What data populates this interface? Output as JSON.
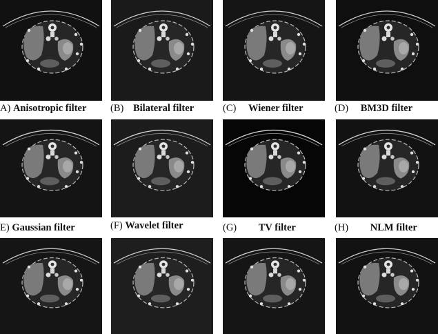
{
  "figure": {
    "panels": [
      {
        "letter": "A)",
        "name": "Anisotropic filter",
        "tone": "#111111"
      },
      {
        "letter": "(B)",
        "name": "Bilateral filter",
        "tone": "#1a1a1a"
      },
      {
        "letter": "(C)",
        "name": "Wiener filter",
        "tone": "#151515"
      },
      {
        "letter": "(D)",
        "name": "BM3D filter",
        "tone": "#0f0f0f"
      },
      {
        "letter": "E)",
        "name": "Gaussian filter",
        "tone": "#141414"
      },
      {
        "letter": "(F)",
        "name": "Wavelet filter",
        "tone": "#1c1c1c"
      },
      {
        "letter": "(G)",
        "name": "TV filter",
        "tone": "#060606"
      },
      {
        "letter": "(H)",
        "name": "NLM filter",
        "tone": "#121212"
      },
      {
        "letter": "",
        "name": "",
        "tone": "#151515"
      },
      {
        "letter": "",
        "name": "",
        "tone": "#1e1e1e"
      },
      {
        "letter": "",
        "name": "",
        "tone": "#151515"
      },
      {
        "letter": "",
        "name": "",
        "tone": "#121212"
      }
    ]
  }
}
